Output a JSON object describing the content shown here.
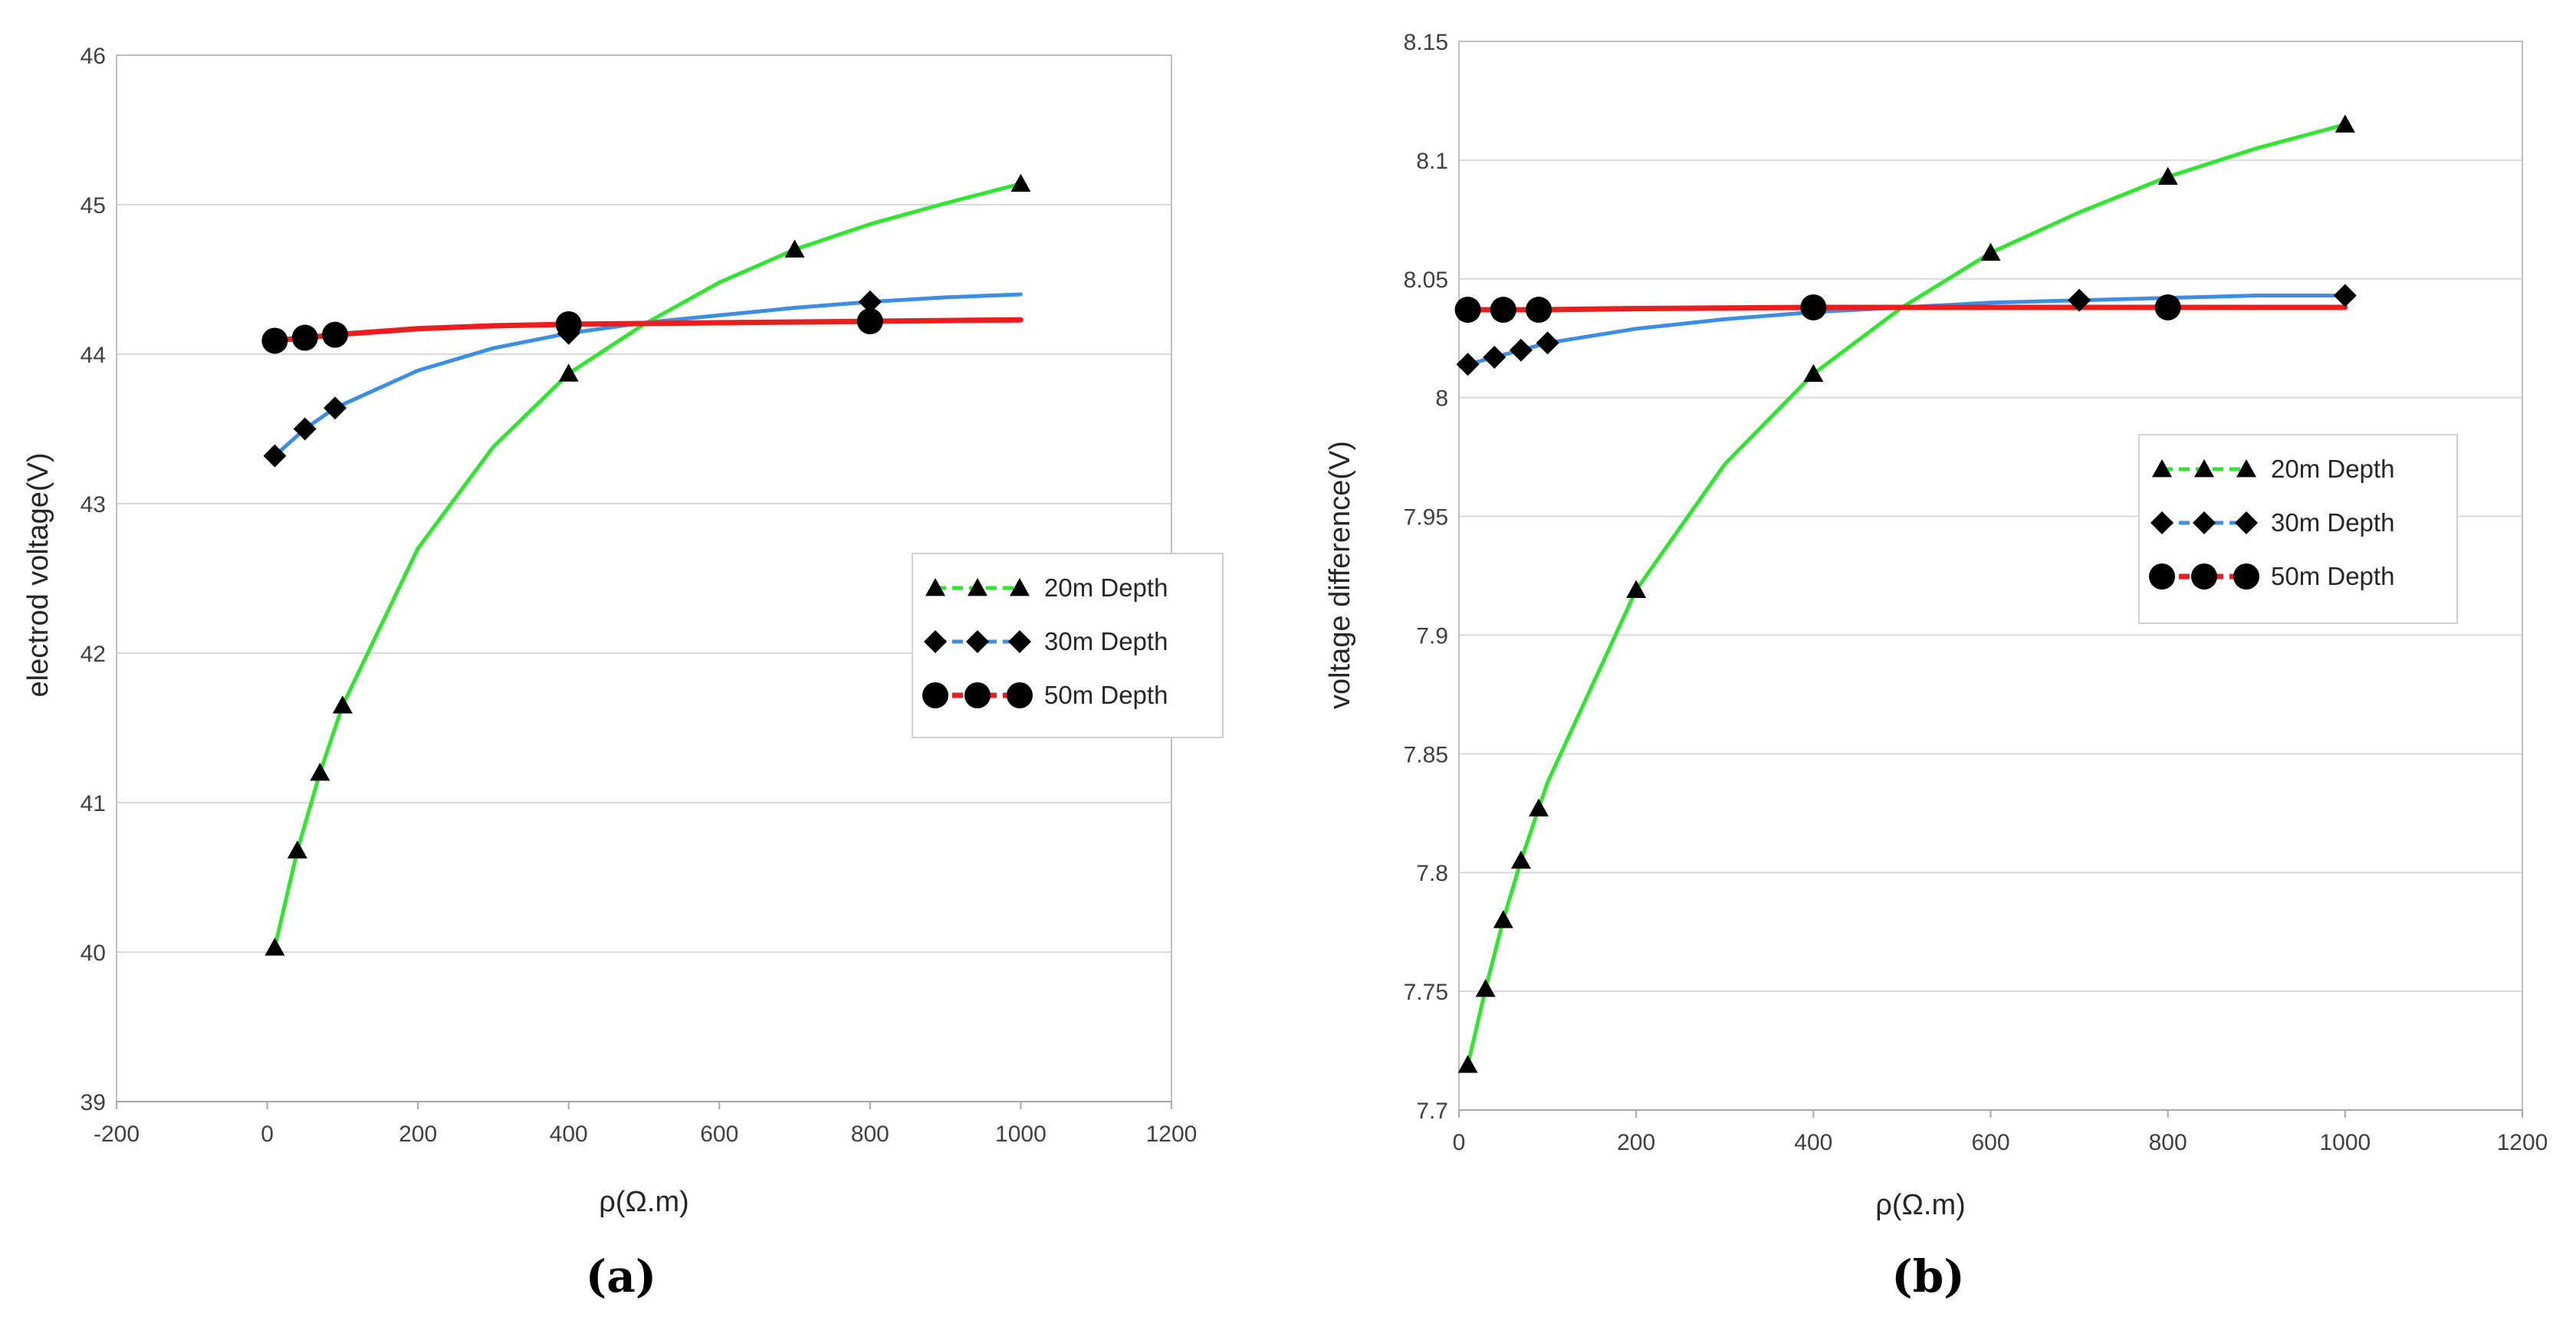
{
  "chart_data": [
    {
      "panel_label": "(a)",
      "type": "line",
      "xlabel": "ρ(Ω.m)",
      "ylabel": "electrod voltage(V)",
      "xlim": [
        -200,
        1200
      ],
      "ylim": [
        39,
        46
      ],
      "xticks": [
        -200,
        0,
        200,
        400,
        600,
        800,
        1000,
        1200
      ],
      "yticks": [
        39,
        40,
        41,
        42,
        43,
        44,
        45,
        46
      ],
      "grid": "horizontal",
      "legend_position": "right",
      "series": [
        {
          "name": "20m Depth",
          "color": "#2ee62e",
          "marker": "triangle",
          "curve": [
            [
              10,
              40.03
            ],
            [
              40,
              40.68
            ],
            [
              70,
              41.2
            ],
            [
              100,
              41.65
            ],
            [
              200,
              42.7
            ],
            [
              300,
              43.38
            ],
            [
              400,
              43.87
            ],
            [
              500,
              44.2
            ],
            [
              600,
              44.48
            ],
            [
              700,
              44.7
            ],
            [
              800,
              44.87
            ],
            [
              900,
              45.01
            ],
            [
              1000,
              45.14
            ]
          ],
          "markers": [
            [
              10,
              40.03
            ],
            [
              40,
              40.68
            ],
            [
              70,
              41.2
            ],
            [
              100,
              41.65
            ],
            [
              400,
              43.87
            ],
            [
              700,
              44.7
            ],
            [
              1000,
              45.14
            ]
          ]
        },
        {
          "name": "30m Depth",
          "color": "#3a8ee6",
          "marker": "diamond",
          "curve": [
            [
              10,
              43.32
            ],
            [
              50,
              43.5
            ],
            [
              90,
              43.64
            ],
            [
              200,
              43.89
            ],
            [
              300,
              44.04
            ],
            [
              400,
              44.14
            ],
            [
              500,
              44.21
            ],
            [
              600,
              44.26
            ],
            [
              700,
              44.31
            ],
            [
              800,
              44.35
            ],
            [
              900,
              44.38
            ],
            [
              1000,
              44.4
            ]
          ],
          "markers": [
            [
              10,
              43.32
            ],
            [
              50,
              43.5
            ],
            [
              90,
              43.64
            ],
            [
              400,
              44.14
            ],
            [
              800,
              44.35
            ]
          ]
        },
        {
          "name": "50m Depth",
          "color": "#ee1c1c",
          "marker": "circle",
          "curve": [
            [
              10,
              44.09
            ],
            [
              50,
              44.11
            ],
            [
              90,
              44.13
            ],
            [
              200,
              44.17
            ],
            [
              300,
              44.19
            ],
            [
              400,
              44.2
            ],
            [
              600,
              44.21
            ],
            [
              800,
              44.22
            ],
            [
              1000,
              44.23
            ]
          ],
          "markers": [
            [
              10,
              44.09
            ],
            [
              50,
              44.11
            ],
            [
              90,
              44.13
            ],
            [
              400,
              44.2
            ],
            [
              800,
              44.22
            ]
          ]
        }
      ]
    },
    {
      "panel_label": "(b)",
      "type": "line",
      "xlabel": "ρ(Ω.m)",
      "ylabel": "voltage difference(V)",
      "xlim": [
        0,
        1200
      ],
      "ylim": [
        7.7,
        8.15
      ],
      "xticks": [
        0,
        200,
        400,
        600,
        800,
        1000,
        1200
      ],
      "yticks": [
        7.7,
        7.75,
        7.8,
        7.85,
        7.9,
        7.95,
        8,
        8.05,
        8.1,
        8.15
      ],
      "ytick_labels": [
        "7.7",
        "7.75",
        "7.8",
        "7.85",
        "7.9",
        "7.95",
        "8",
        "8.05",
        "8.1",
        "8.15"
      ],
      "grid": "horizontal",
      "legend_position": "right",
      "series": [
        {
          "name": "20m Depth",
          "color": "#2ee62e",
          "marker": "triangle",
          "curve": [
            [
              10,
              7.719
            ],
            [
              30,
              7.751
            ],
            [
              50,
              7.78
            ],
            [
              70,
              7.805
            ],
            [
              90,
              7.827
            ],
            [
              100,
              7.838
            ],
            [
              200,
              7.919
            ],
            [
              300,
              7.972
            ],
            [
              400,
              8.01
            ],
            [
              500,
              8.038
            ],
            [
              600,
              8.061
            ],
            [
              700,
              8.078
            ],
            [
              800,
              8.093
            ],
            [
              900,
              8.105
            ],
            [
              1000,
              8.115
            ]
          ],
          "markers": [
            [
              10,
              7.719
            ],
            [
              30,
              7.751
            ],
            [
              50,
              7.78
            ],
            [
              70,
              7.805
            ],
            [
              90,
              7.827
            ],
            [
              200,
              7.919
            ],
            [
              400,
              8.01
            ],
            [
              600,
              8.061
            ],
            [
              800,
              8.093
            ],
            [
              1000,
              8.115
            ]
          ]
        },
        {
          "name": "30m Depth",
          "color": "#3a8ee6",
          "marker": "diamond",
          "curve": [
            [
              10,
              8.014
            ],
            [
              40,
              8.017
            ],
            [
              70,
              8.02
            ],
            [
              100,
              8.023
            ],
            [
              200,
              8.029
            ],
            [
              300,
              8.033
            ],
            [
              400,
              8.036
            ],
            [
              500,
              8.038
            ],
            [
              600,
              8.04
            ],
            [
              700,
              8.041
            ],
            [
              800,
              8.042
            ],
            [
              900,
              8.043
            ],
            [
              1000,
              8.043
            ]
          ],
          "markers": [
            [
              10,
              8.014
            ],
            [
              40,
              8.017
            ],
            [
              70,
              8.02
            ],
            [
              100,
              8.023
            ],
            [
              700,
              8.041
            ],
            [
              1000,
              8.043
            ]
          ]
        },
        {
          "name": "50m Depth",
          "color": "#ee1c1c",
          "marker": "circle",
          "curve": [
            [
              10,
              8.037
            ],
            [
              50,
              8.037
            ],
            [
              90,
              8.037
            ],
            [
              200,
              8.0375
            ],
            [
              400,
              8.038
            ],
            [
              600,
              8.038
            ],
            [
              800,
              8.038
            ],
            [
              1000,
              8.038
            ]
          ],
          "markers": [
            [
              10,
              8.037
            ],
            [
              50,
              8.037
            ],
            [
              90,
              8.037
            ],
            [
              400,
              8.038
            ],
            [
              800,
              8.038
            ]
          ]
        }
      ]
    }
  ]
}
